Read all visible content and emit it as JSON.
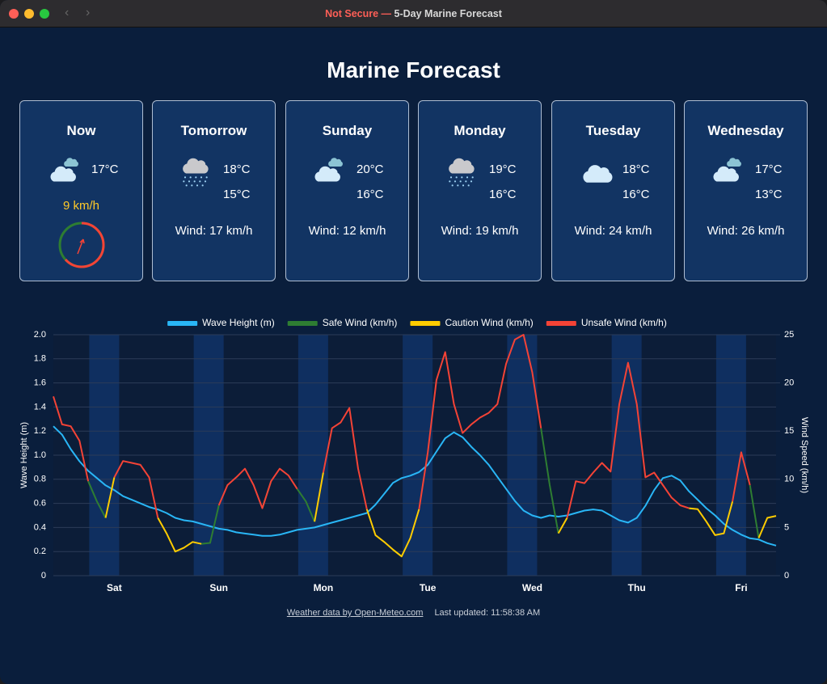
{
  "window": {
    "security": "Not Secure —",
    "title": "5-Day Marine Forecast"
  },
  "header": {
    "title": "Marine Forecast"
  },
  "cards": [
    {
      "day": "Now",
      "temp": "17°C",
      "wind": "9 km/h"
    },
    {
      "day": "Tomorrow",
      "high": "18°C",
      "low": "15°C",
      "wind": "Wind: 17 km/h"
    },
    {
      "day": "Sunday",
      "high": "20°C",
      "low": "16°C",
      "wind": "Wind: 12 km/h"
    },
    {
      "day": "Monday",
      "high": "19°C",
      "low": "16°C",
      "wind": "Wind: 19 km/h"
    },
    {
      "day": "Tuesday",
      "high": "18°C",
      "low": "16°C",
      "wind": "Wind: 24 km/h"
    },
    {
      "day": "Wednesday",
      "high": "17°C",
      "low": "13°C",
      "wind": "Wind: 26 km/h"
    }
  ],
  "chart_data": {
    "type": "line",
    "categories": [
      null,
      null,
      null,
      null,
      null,
      null,
      null,
      "Sat",
      null,
      null,
      null,
      null,
      null,
      null,
      null,
      null,
      null,
      null,
      null,
      "Sun",
      null,
      null,
      null,
      null,
      null,
      null,
      null,
      null,
      null,
      null,
      null,
      "Mon",
      null,
      null,
      null,
      null,
      null,
      null,
      null,
      null,
      null,
      null,
      null,
      "Tue",
      null,
      null,
      null,
      null,
      null,
      null,
      null,
      null,
      null,
      null,
      null,
      "Wed",
      null,
      null,
      null,
      null,
      null,
      null,
      null,
      null,
      null,
      null,
      null,
      "Thu",
      null,
      null,
      null,
      null,
      null,
      null,
      null,
      null,
      null,
      null,
      null,
      "Fri",
      null,
      null,
      null,
      null
    ],
    "series": [
      {
        "name": "Wave Height (m)",
        "color": "#29b6f6",
        "values": [
          1.24,
          1.17,
          1.05,
          0.95,
          0.87,
          0.81,
          0.75,
          0.71,
          0.66,
          0.63,
          0.6,
          0.57,
          0.55,
          0.52,
          0.48,
          0.46,
          0.45,
          0.43,
          0.41,
          0.39,
          0.38,
          0.36,
          0.35,
          0.34,
          0.33,
          0.33,
          0.34,
          0.36,
          0.38,
          0.39,
          0.4,
          0.42,
          0.44,
          0.46,
          0.48,
          0.5,
          0.52,
          0.59,
          0.68,
          0.77,
          0.81,
          0.83,
          0.86,
          0.92,
          1.03,
          1.14,
          1.19,
          1.15,
          1.07,
          1,
          0.92,
          0.82,
          0.72,
          0.62,
          0.54,
          0.5,
          0.48,
          0.5,
          0.49,
          0.5,
          0.52,
          0.54,
          0.55,
          0.54,
          0.5,
          0.46,
          0.44,
          0.48,
          0.58,
          0.71,
          0.81,
          0.83,
          0.79,
          0.7,
          0.63,
          0.56,
          0.5,
          0.43,
          0.38,
          0.34,
          0.31,
          0.3,
          0.27,
          0.25
        ]
      },
      {
        "name": "Safe Wind (km/h)",
        "color": "#2e7d32",
        "axis": "y2",
        "values": [
          null,
          null,
          null,
          null,
          9.8,
          7.7,
          6,
          null,
          null,
          null,
          null,
          null,
          null,
          null,
          null,
          null,
          null,
          3.3,
          3.4,
          7.3,
          null,
          null,
          null,
          null,
          7,
          9.8,
          null,
          null,
          9,
          7.7,
          5.6,
          null,
          null,
          null,
          null,
          null,
          null,
          null,
          null,
          2.7,
          2,
          null,
          null,
          null,
          null,
          null,
          null,
          null,
          null,
          null,
          null,
          null,
          null,
          null,
          null,
          null,
          15.3,
          9.4,
          4.4,
          null,
          null,
          null,
          null,
          null,
          null,
          null,
          null,
          null,
          null,
          null,
          null,
          null,
          null,
          null,
          null,
          null,
          null,
          null,
          null,
          null,
          9.4,
          3.9,
          null,
          null
        ]
      },
      {
        "name": "Caution Wind (km/h)",
        "color": "#ffcc00",
        "axis": "y2",
        "values": [
          null,
          null,
          null,
          null,
          null,
          null,
          6,
          10.2,
          null,
          null,
          null,
          null,
          6,
          4.4,
          2.5,
          2.9,
          3.5,
          3.3,
          null,
          null,
          null,
          null,
          null,
          null,
          null,
          null,
          null,
          null,
          null,
          null,
          5.6,
          10.7,
          null,
          null,
          null,
          null,
          6.9,
          4.2,
          3.5,
          2.7,
          2,
          3.9,
          6.9,
          null,
          null,
          null,
          null,
          null,
          null,
          null,
          null,
          null,
          null,
          null,
          null,
          null,
          null,
          null,
          4.4,
          6,
          null,
          null,
          null,
          null,
          null,
          null,
          null,
          null,
          null,
          null,
          null,
          null,
          null,
          7,
          6.9,
          5.6,
          4.2,
          4.4,
          7.7,
          null,
          null,
          3.9,
          6,
          6.2
        ]
      },
      {
        "name": "Unsafe Wind (km/h)",
        "color": "#f44336",
        "axis": "y2",
        "values": [
          18.6,
          15.7,
          15.5,
          14,
          9.8,
          null,
          null,
          10.2,
          11.9,
          11.7,
          11.5,
          10.2,
          6,
          null,
          null,
          null,
          null,
          null,
          null,
          7.3,
          9.4,
          10.2,
          11.1,
          9.4,
          7,
          9.8,
          11.1,
          10.4,
          9,
          null,
          null,
          10.7,
          15.3,
          15.9,
          17.4,
          11.1,
          6.9,
          null,
          null,
          null,
          null,
          null,
          6.9,
          12.8,
          20.3,
          23.2,
          17.8,
          14.8,
          15.7,
          16.4,
          16.9,
          17.8,
          22,
          24.5,
          25,
          21.1,
          15.3,
          null,
          null,
          6,
          9.8,
          9.6,
          10.7,
          11.7,
          10.8,
          17.8,
          22.1,
          17.8,
          10.2,
          10.7,
          9.4,
          8.1,
          7.3,
          7,
          null,
          null,
          null,
          null,
          7.7,
          12.8,
          9.4,
          null,
          null,
          null
        ]
      }
    ],
    "y_label": "Wave Height (m)",
    "y2_label": "Wind Speed (km/h)",
    "ylim": [
      0,
      2
    ],
    "yticks": [
      0,
      0.2,
      0.4,
      0.6,
      0.8,
      {
        "value": 1,
        "label": "1.0"
      },
      1.2,
      1.4,
      1.6,
      1.8,
      {
        "value": 2,
        "label": "2.0"
      }
    ],
    "y2lim": [
      0,
      25
    ],
    "y2ticks": [
      0,
      5,
      10,
      15,
      20,
      25
    ],
    "grid": true,
    "legend": "top"
  },
  "footer": {
    "source": "Weather data by Open-Meteo.com",
    "updated": "Last updated: 11:58:38 AM"
  }
}
